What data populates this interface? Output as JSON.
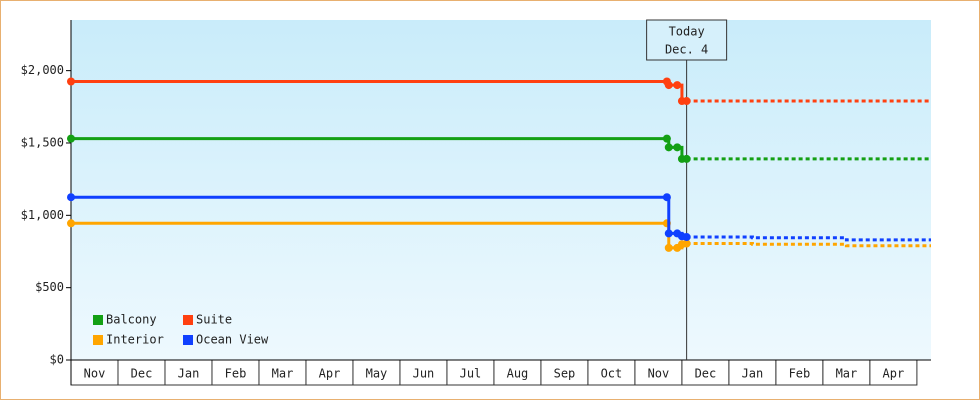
{
  "chart_data": {
    "type": "step-line",
    "categories": [
      "Nov",
      "Dec",
      "Jan",
      "Feb",
      "Mar",
      "Apr",
      "May",
      "Jun",
      "Jul",
      "Aug",
      "Sep",
      "Oct",
      "Nov",
      "Dec",
      "Jan",
      "Feb",
      "Mar",
      "Apr"
    ],
    "xlim": [
      0,
      18.3
    ],
    "ylim": [
      0,
      2350
    ],
    "yticks": [
      {
        "value": 0,
        "label": "$0"
      },
      {
        "value": 500,
        "label": "$500"
      },
      {
        "value": 1000,
        "label": "$1,000"
      },
      {
        "value": 1500,
        "label": "$1,500"
      },
      {
        "value": 2000,
        "label": "$2,000"
      }
    ],
    "annotation": {
      "x": 13.1,
      "lines": [
        "Today",
        "Dec. 4"
      ]
    },
    "legend": "bottom-left",
    "series": [
      {
        "name": "Balcony",
        "color": "#14a014",
        "x": [
          0,
          12.68,
          12.72,
          12.9,
          13.0,
          13.1
        ],
        "values": [
          1530,
          1530,
          1470,
          1470,
          1390,
          1390
        ],
        "forecast_x": [
          13.1,
          18.3
        ],
        "forecast_values": [
          1390,
          1390
        ]
      },
      {
        "name": "Suite",
        "color": "#ff4010",
        "x": [
          0,
          12.68,
          12.72,
          12.9,
          13.0,
          13.1
        ],
        "values": [
          1925,
          1925,
          1900,
          1900,
          1790,
          1790
        ],
        "forecast_x": [
          13.1,
          18.3
        ],
        "forecast_values": [
          1790,
          1790
        ]
      },
      {
        "name": "Interior",
        "color": "#ffa500",
        "x": [
          0,
          12.68,
          12.72,
          12.9,
          13.0,
          13.1
        ],
        "values": [
          945,
          945,
          775,
          775,
          800,
          805
        ],
        "forecast_x": [
          13.1,
          14.5,
          16.5,
          18.3
        ],
        "forecast_values": [
          805,
          800,
          790,
          790
        ]
      },
      {
        "name": "Ocean View",
        "color": "#1040ff",
        "x": [
          0,
          12.68,
          12.72,
          12.9,
          13.0,
          13.1
        ],
        "values": [
          1125,
          1125,
          875,
          875,
          855,
          850
        ],
        "forecast_x": [
          13.1,
          14.5,
          16.5,
          18.3
        ],
        "forecast_values": [
          850,
          845,
          830,
          830
        ]
      }
    ]
  }
}
